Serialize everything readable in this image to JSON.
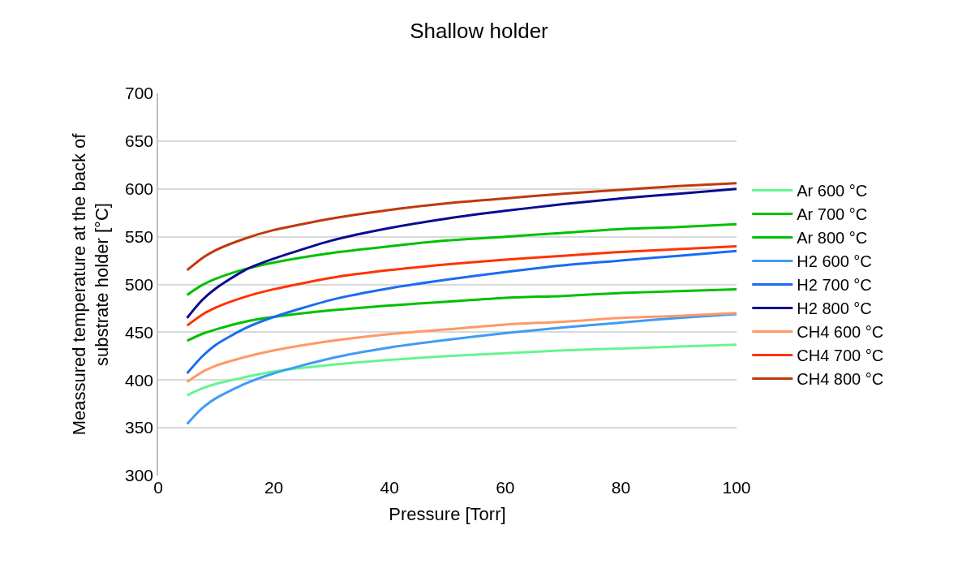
{
  "chart_data": {
    "type": "line",
    "title": "Shallow holder",
    "xlabel": "Pressure [Torr]",
    "ylabel": "Meassured temperature at the back of\nsubstrate holder [°C]",
    "x": [
      5,
      7.5,
      10,
      15,
      20,
      30,
      40,
      50,
      60,
      70,
      80,
      90,
      100
    ],
    "xlim": [
      0,
      100
    ],
    "xticks": [
      0,
      20,
      40,
      60,
      80,
      100
    ],
    "ylim": [
      300,
      700
    ],
    "yticks": [
      300,
      350,
      400,
      450,
      500,
      550,
      600,
      650,
      700
    ],
    "grid": "y",
    "legend": "right",
    "marker": "none",
    "line_style": "solid",
    "series": [
      {
        "name": "Ar 600 °C",
        "color": "#66f591",
        "values": [
          384,
          391,
          396,
          403,
          409,
          416,
          421,
          425,
          428,
          431,
          433,
          435,
          437
        ]
      },
      {
        "name": "Ar 700 °C",
        "color": "#00c000",
        "values": [
          441,
          448,
          453,
          461,
          466,
          473,
          478,
          482,
          486,
          488,
          491,
          493,
          495
        ]
      },
      {
        "name": "Ar 800 °C",
        "color": "#00c000",
        "values": [
          489,
          499,
          506,
          516,
          523,
          533,
          540,
          546,
          550,
          554,
          558,
          560,
          563
        ]
      },
      {
        "name": "H2 600 °C",
        "color": "#3f9cf5",
        "values": [
          354,
          370,
          381,
          396,
          407,
          423,
          434,
          442,
          449,
          455,
          460,
          465,
          469
        ]
      },
      {
        "name": "H2 700 °C",
        "color": "#1a6cf0",
        "values": [
          407,
          424,
          437,
          454,
          466,
          484,
          496,
          505,
          513,
          520,
          525,
          530,
          535
        ]
      },
      {
        "name": "H2 800 °C",
        "color": "#0a0a90",
        "values": [
          465,
          483,
          496,
          515,
          527,
          546,
          559,
          569,
          577,
          584,
          590,
          595,
          600
        ]
      },
      {
        "name": "CH4 600 °C",
        "color": "#ff9966",
        "values": [
          398,
          408,
          415,
          424,
          431,
          441,
          448,
          453,
          458,
          461,
          465,
          467,
          470
        ]
      },
      {
        "name": "CH4 700 °C",
        "color": "#ff3300",
        "values": [
          457,
          468,
          476,
          487,
          495,
          507,
          515,
          521,
          526,
          530,
          534,
          537,
          540
        ]
      },
      {
        "name": "CH4 800 °C",
        "color": "#c0390b",
        "values": [
          515,
          527,
          536,
          548,
          557,
          569,
          578,
          585,
          590,
          595,
          599,
          603,
          606
        ]
      }
    ]
  }
}
